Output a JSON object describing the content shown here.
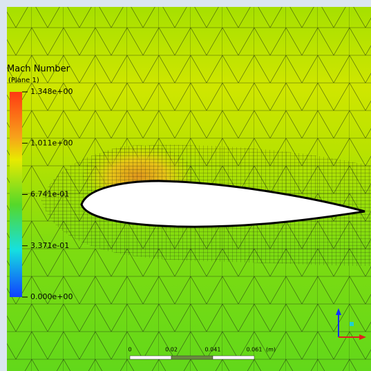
{
  "legend": {
    "title": "Mach Number",
    "subtitle": "(Plane 1)",
    "ticks": [
      "1.348e+00",
      "1.011e+00",
      "6.741e-01",
      "3.371e-01",
      "0.000e+00"
    ]
  },
  "scale_bar": {
    "labels": [
      "0",
      "0.02",
      "0.041",
      "0.061"
    ],
    "unit": "(m)"
  }
}
